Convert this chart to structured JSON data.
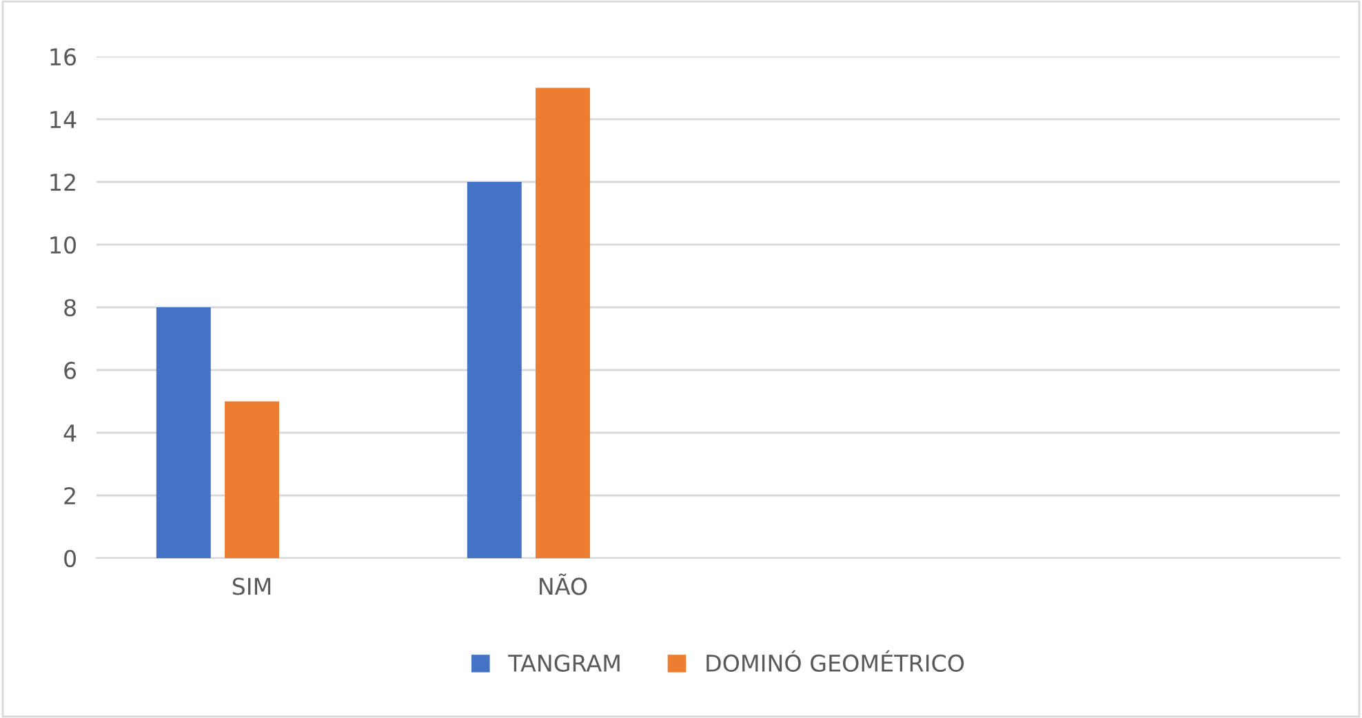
{
  "chart_data": {
    "type": "bar",
    "categories": [
      "SIM",
      "NÃO",
      null,
      null
    ],
    "series": [
      {
        "name": "TANGRAM",
        "color": "#4472c4",
        "values": [
          8,
          12,
          null,
          null
        ]
      },
      {
        "name": "DOMINÓ GEOMÉTRICO",
        "color": "#ed7d31",
        "values": [
          5,
          15,
          null,
          null
        ]
      }
    ],
    "ylim": [
      0,
      16
    ],
    "yticks": [
      0,
      2,
      4,
      6,
      8,
      10,
      12,
      14,
      16
    ],
    "grid": "y",
    "legend": "bottom"
  }
}
